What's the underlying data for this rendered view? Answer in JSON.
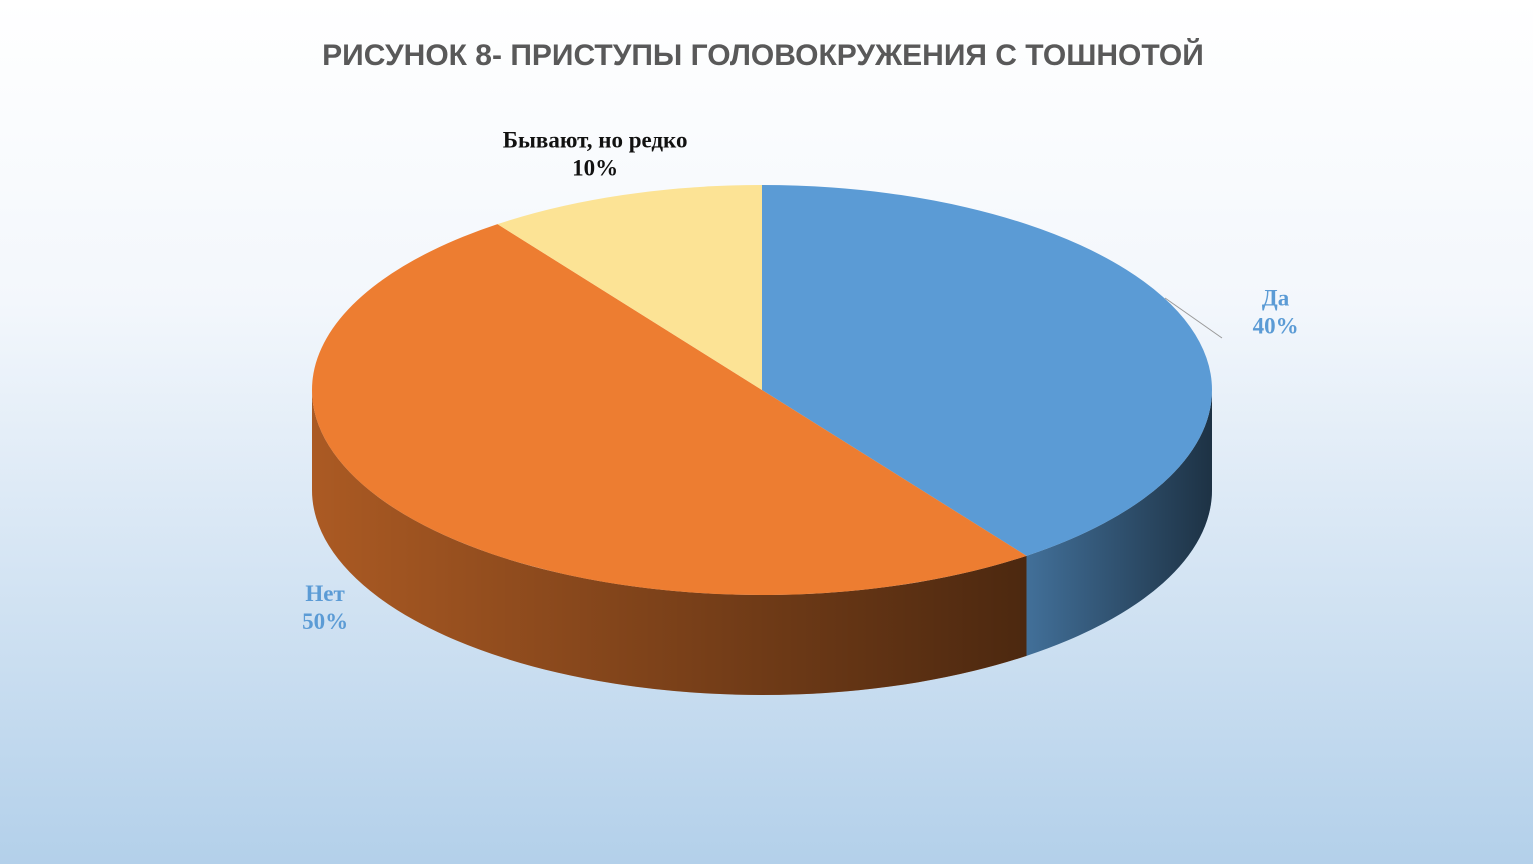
{
  "chart_data": {
    "type": "pie",
    "title": "РИСУНОК 8- ПРИСТУПЫ ГОЛОВОКРУЖЕНИЯ С ТОШНОТОЙ",
    "categories": [
      "Да",
      "Нет",
      "Бывают, но редко"
    ],
    "values": [
      40,
      50,
      10
    ],
    "value_labels": [
      "40%",
      "50%",
      "10%"
    ],
    "colors": [
      "#5b9bd5",
      "#ed7d31",
      "#fce395"
    ]
  }
}
